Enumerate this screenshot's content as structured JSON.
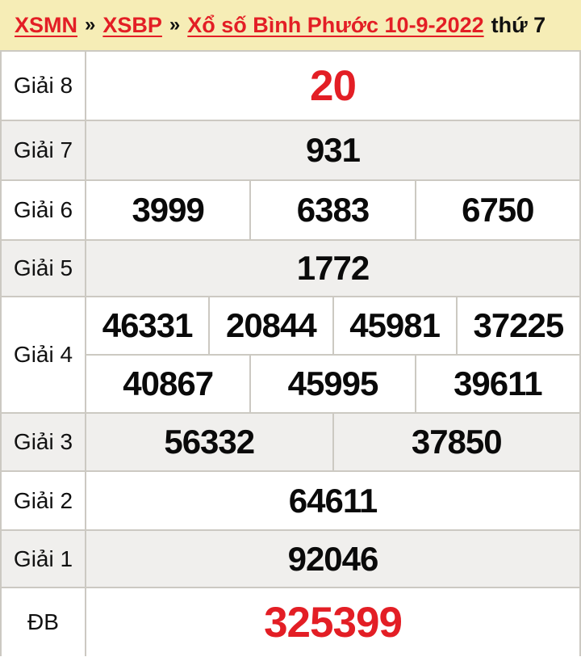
{
  "breadcrumb": {
    "links": [
      "XSMN",
      "XSBP",
      "Xổ số Bình Phước 10-9-2022"
    ],
    "separator": "»",
    "day": "thứ 7"
  },
  "colors": {
    "red": "#e31e25",
    "header-bg": "#f6edb6",
    "row-alt": "#f0efed",
    "border": "#ccc9c2"
  },
  "table": {
    "rows": [
      {
        "id": "giai-8",
        "label": "Giải 8",
        "cells": [
          "20"
        ]
      },
      {
        "id": "giai-7",
        "label": "Giải 7",
        "cells": [
          "931"
        ]
      },
      {
        "id": "giai-6",
        "label": "Giải 6",
        "cells": [
          "3999",
          "6383",
          "6750"
        ]
      },
      {
        "id": "giai-5",
        "label": "Giải 5",
        "cells": [
          "1772"
        ]
      },
      {
        "id": "giai-4",
        "label": "Giải 4",
        "lines": [
          [
            "46331",
            "20844",
            "45981",
            "37225"
          ],
          [
            "40867",
            "45995",
            "39611"
          ]
        ]
      },
      {
        "id": "giai-3",
        "label": "Giải 3",
        "cells": [
          "56332",
          "37850"
        ]
      },
      {
        "id": "giai-2",
        "label": "Giải 2",
        "cells": [
          "64611"
        ]
      },
      {
        "id": "giai-1",
        "label": "Giải 1",
        "cells": [
          "92046"
        ]
      },
      {
        "id": "giai-db",
        "label": "ĐB",
        "cells": [
          "325399"
        ]
      }
    ]
  }
}
